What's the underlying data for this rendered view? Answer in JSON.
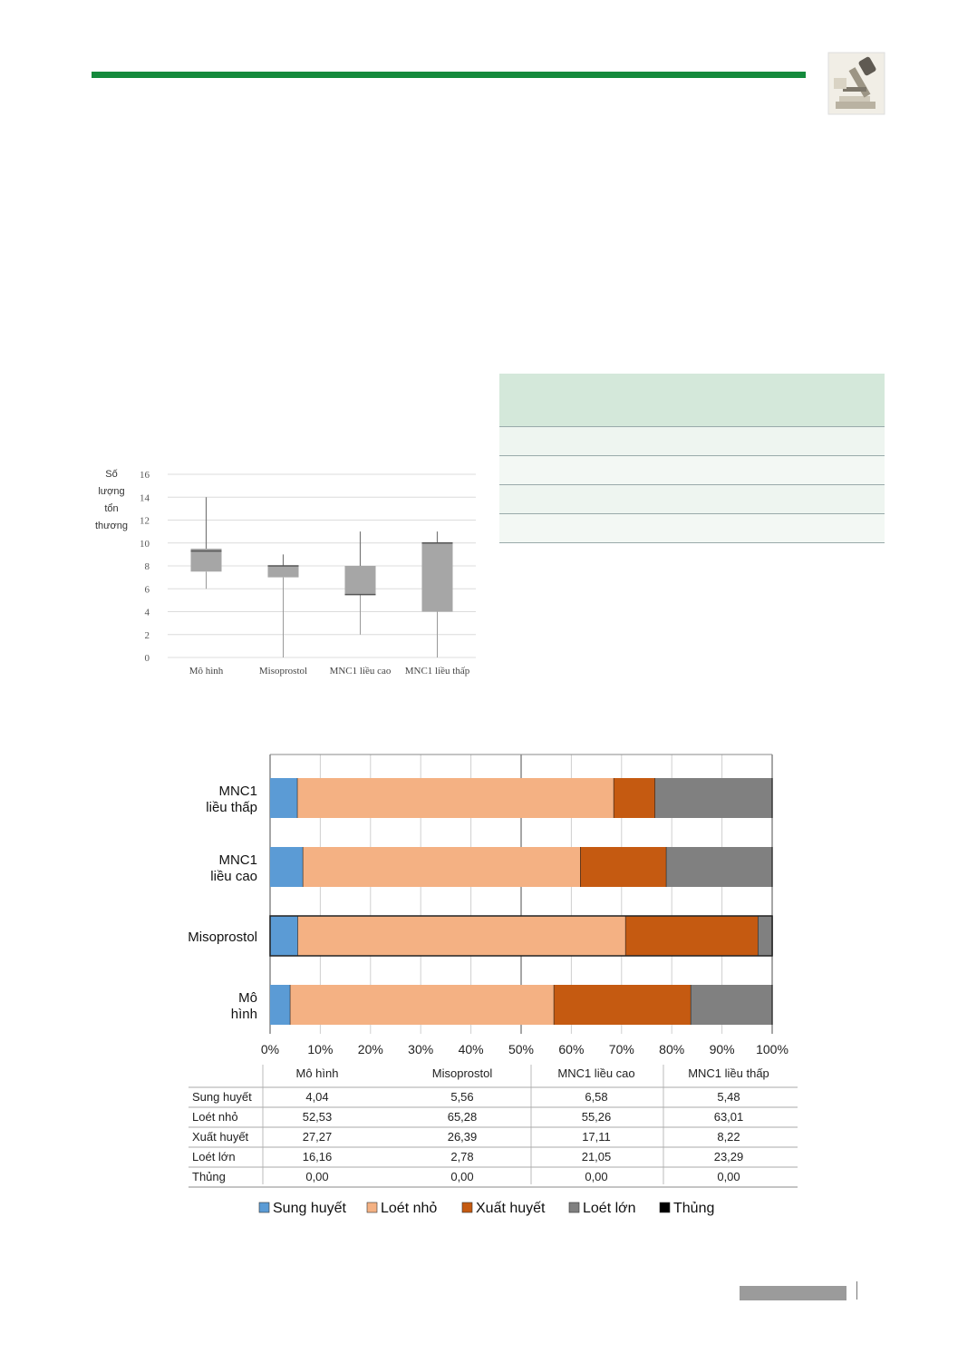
{
  "colors": {
    "header_rule": "#148a3c",
    "sung_huyet": "#5b9bd5",
    "loet_nho": "#f4b183",
    "xuat_huyet": "#c55a11",
    "loet_lon": "#808080",
    "thung": "#000000",
    "table_header": "#d4e8da",
    "box_fill": "#a6a6a6"
  },
  "header_icon": "microscope-icon",
  "boxplot": {
    "ylabel_lines": [
      "Số",
      "lượng",
      "tổn",
      "thương"
    ],
    "y_ticks": [
      "0",
      "2",
      "4",
      "6",
      "8",
      "10",
      "12",
      "14",
      "16"
    ],
    "x_labels": [
      "Mô hình",
      "Misoprostol",
      "MNC1 liều cao",
      "MNC1 liều thấp"
    ]
  },
  "chart_data": [
    {
      "type": "boxplot",
      "title": "",
      "ylabel": "Số lượng tổn thương",
      "ylim": [
        0,
        16
      ],
      "categories": [
        "Mô hình",
        "Misoprostol",
        "MNC1 liều cao",
        "MNC1 liều thấp"
      ],
      "min": [
        6,
        0,
        2,
        0
      ],
      "q1": [
        7.5,
        7,
        5.5,
        4
      ],
      "median": [
        9.3,
        8,
        5.5,
        10
      ],
      "q3": [
        9.5,
        8,
        8,
        10
      ],
      "max": [
        14,
        9,
        11,
        11
      ],
      "grid": true
    },
    {
      "type": "bar",
      "orientation": "horizontal",
      "stacked": "percent",
      "categories": [
        "MNC1 liều thấp",
        "MNC1 liều cao",
        "Misoprostol",
        "Mô hình"
      ],
      "series": [
        {
          "name": "Sung huyết",
          "values": [
            5.48,
            6.58,
            5.56,
            4.04
          ]
        },
        {
          "name": "Loét nhỏ",
          "values": [
            63.01,
            55.26,
            65.28,
            52.53
          ]
        },
        {
          "name": "Xuất huyết",
          "values": [
            8.22,
            17.11,
            26.39,
            27.27
          ]
        },
        {
          "name": "Loét lớn",
          "values": [
            23.29,
            21.05,
            2.78,
            16.16
          ]
        },
        {
          "name": "Thủng",
          "values": [
            0.0,
            0.0,
            0.0,
            0.0
          ]
        }
      ],
      "x_ticks": [
        "0%",
        "10%",
        "20%",
        "30%",
        "40%",
        "50%",
        "60%",
        "70%",
        "80%",
        "90%",
        "100%"
      ],
      "xlim": [
        0,
        100
      ],
      "legend_position": "bottom",
      "grid": true
    }
  ],
  "data_table": {
    "columns": [
      "Mô hình",
      "Misoprostol",
      "MNC1 liều cao",
      "MNC1 liều thấp"
    ],
    "rows": [
      {
        "label": "Sung huyết",
        "values": [
          "4,04",
          "5,56",
          "6,58",
          "5,48"
        ]
      },
      {
        "label": "Loét nhỏ",
        "values": [
          "52,53",
          "65,28",
          "55,26",
          "63,01"
        ]
      },
      {
        "label": "Xuất huyết",
        "values": [
          "27,27",
          "26,39",
          "17,11",
          "8,22"
        ]
      },
      {
        "label": "Loét lớn",
        "values": [
          "16,16",
          "2,78",
          "21,05",
          "23,29"
        ]
      },
      {
        "label": "Thủng",
        "values": [
          "0,00",
          "0,00",
          "0,00",
          "0,00"
        ]
      }
    ]
  },
  "legend": [
    "Sung huyết",
    "Loét nhỏ",
    "Xuất huyết",
    "Loét lớn",
    "Thủng"
  ]
}
